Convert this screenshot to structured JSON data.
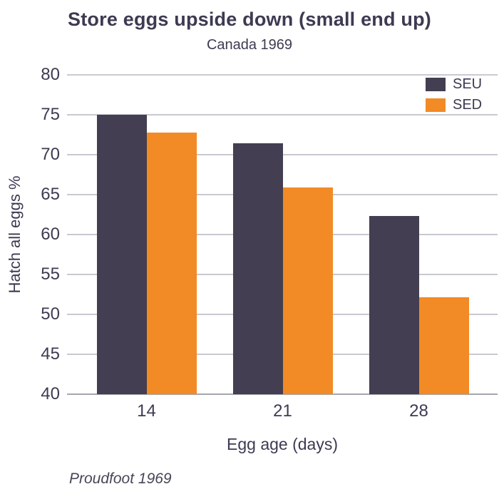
{
  "colors": {
    "text": "#3E3A52",
    "grid": "#C9C9D1",
    "axis_line": "#A6A6AE",
    "seu_bar": "#433E51",
    "sed_bar": "#F28A25"
  },
  "chart_data": {
    "type": "bar",
    "title": "Store eggs upside down (small end up)",
    "subtitle": "Canada 1969",
    "categories": [
      "14",
      "21",
      "28"
    ],
    "series": [
      {
        "name": "SEU",
        "color": "#433E51",
        "values": [
          75,
          71.4,
          62.3
        ]
      },
      {
        "name": "SED",
        "color": "#F28A25",
        "values": [
          72.8,
          65.9,
          52.1
        ]
      }
    ],
    "xlabel": "Egg age (days)",
    "ylabel": "Hatch all eggs %",
    "ylim": [
      40,
      80
    ],
    "yticks": [
      40,
      45,
      50,
      55,
      60,
      65,
      70,
      75,
      80
    ],
    "grid": true,
    "legend_position": "top-right",
    "source": "Proudfoot 1969"
  }
}
